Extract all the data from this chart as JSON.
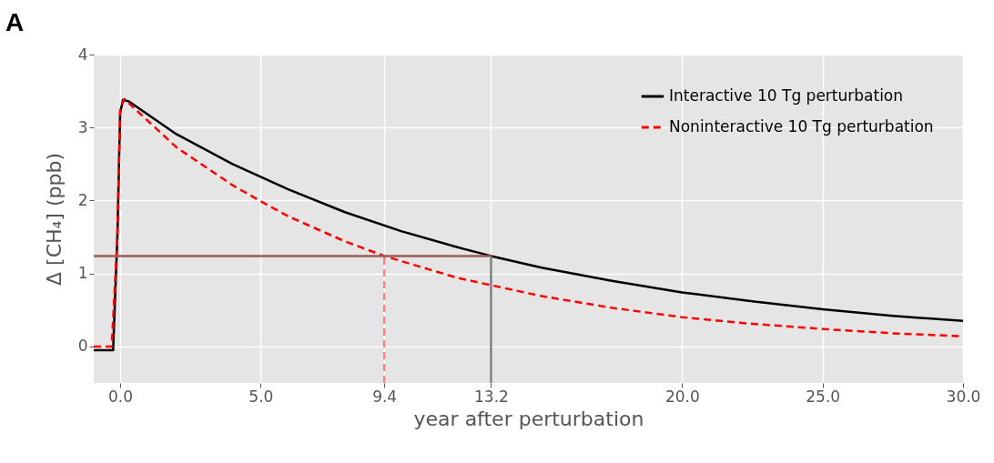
{
  "chart_data": {
    "type": "line",
    "xlabel": "year after perturbation",
    "ylabel": "Δ [CH₄] (ppb)",
    "annotations": [
      "A"
    ],
    "xlim": [
      -0.94,
      30
    ],
    "ylim": [
      -0.5,
      4
    ],
    "xticks": [
      {
        "value": 0,
        "label": "0.0"
      },
      {
        "value": 5,
        "label": "5.0"
      },
      {
        "value": 9.4,
        "label": "9.4"
      },
      {
        "value": 13.2,
        "label": "13.2"
      },
      {
        "value": 20,
        "label": "20.0"
      },
      {
        "value": 25,
        "label": "25.0"
      },
      {
        "value": 30,
        "label": "30.0"
      }
    ],
    "yticks": [
      0,
      1,
      2,
      3,
      4
    ],
    "grid": true,
    "legend": "top right",
    "series": [
      {
        "name": "Interactive 10 Tg perturbation",
        "color": "#000000",
        "line_style": "solid",
        "x": [
          -0.94,
          -0.25,
          -0.1,
          0,
          0.1,
          0.3,
          2,
          4,
          6,
          8,
          10,
          12,
          13.2,
          15,
          17.5,
          20,
          22.5,
          25,
          27.5,
          30
        ],
        "values": [
          -0.05,
          -0.05,
          1.5,
          3.2,
          3.38,
          3.36,
          2.91,
          2.5,
          2.15,
          1.84,
          1.58,
          1.36,
          1.24,
          1.08,
          0.9,
          0.74,
          0.62,
          0.51,
          0.42,
          0.35
        ]
      },
      {
        "name": "Noninteractive 10 Tg perturbation",
        "color": "#ff0000",
        "line_style": "dashed",
        "x": [
          -0.94,
          -0.3,
          -0.1,
          0,
          0.15,
          2,
          4,
          5,
          6,
          8,
          9.4,
          10,
          12,
          15,
          17.5,
          20,
          22.5,
          25,
          27.5,
          30
        ],
        "values": [
          0,
          0,
          1.5,
          3.25,
          3.39,
          2.73,
          2.21,
          1.99,
          1.78,
          1.44,
          1.24,
          1.17,
          0.94,
          0.69,
          0.53,
          0.4,
          0.31,
          0.24,
          0.18,
          0.14
        ]
      }
    ],
    "ref_lines": [
      {
        "axis": "y",
        "value": 1.24,
        "color": "#9a5a5a",
        "line_style": "solid"
      },
      {
        "axis": "x",
        "value": 9.4,
        "color": "#ff8080",
        "line_style": "dashed"
      },
      {
        "axis": "x",
        "value": 13.2,
        "color": "#808080",
        "line_style": "solid"
      }
    ]
  }
}
